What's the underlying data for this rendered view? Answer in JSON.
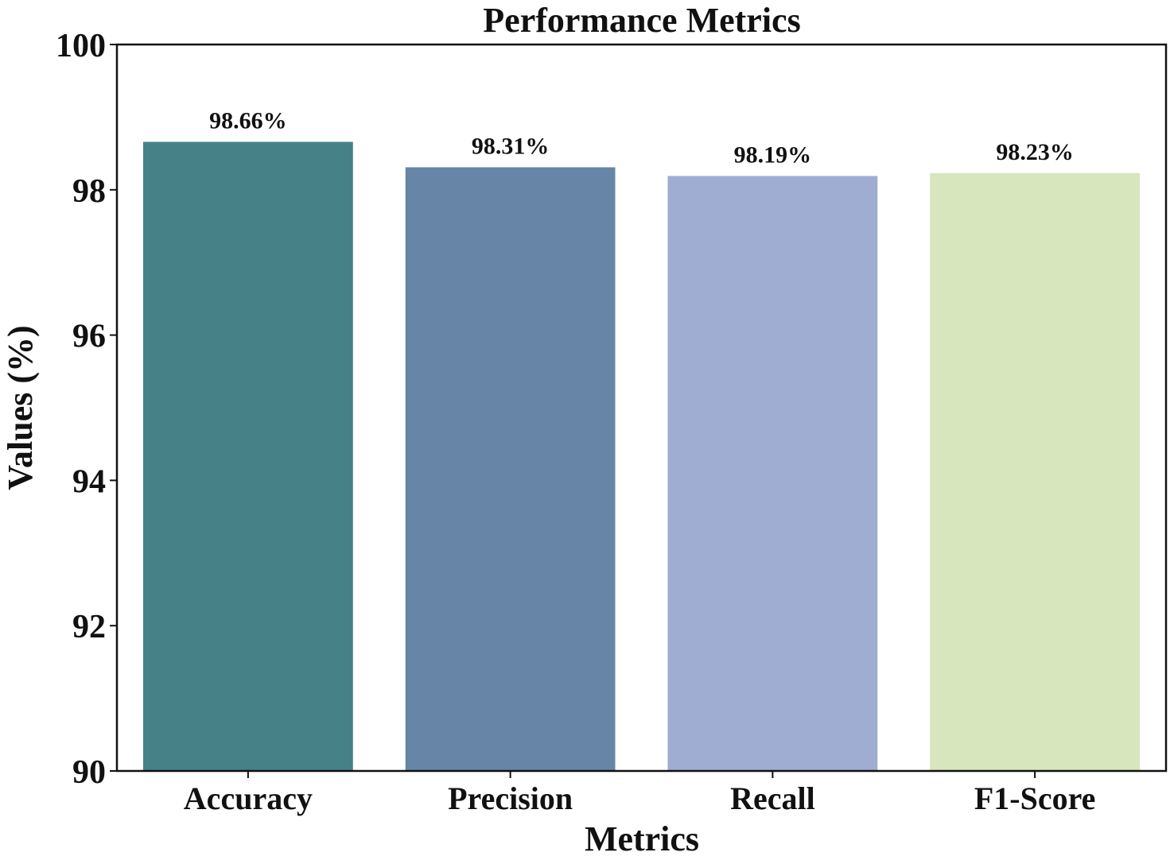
{
  "chart_data": {
    "type": "bar",
    "title": "Performance Metrics",
    "xlabel": "Metrics",
    "ylabel": "Values (%)",
    "categories": [
      "Accuracy",
      "Precision",
      "Recall",
      "F1-Score"
    ],
    "values": [
      98.66,
      98.31,
      98.19,
      98.23
    ],
    "value_labels": [
      "98.66%",
      "98.31%",
      "98.19%",
      "98.23%"
    ],
    "colors": [
      "#468187",
      "#6786a7",
      "#9fadd3",
      "#d7e6bd"
    ],
    "ylim": [
      90,
      100
    ],
    "yticks": [
      90,
      92,
      94,
      96,
      98,
      100
    ],
    "ytick_labels": [
      "90",
      "92",
      "94",
      "96",
      "98",
      "100"
    ],
    "grid": false,
    "legend": "none"
  }
}
